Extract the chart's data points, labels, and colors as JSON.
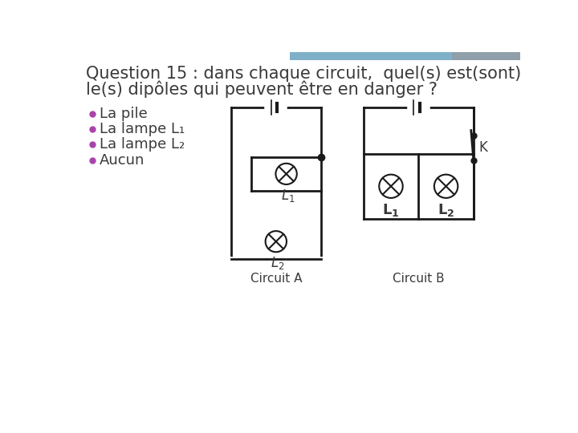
{
  "title_line1": "Question 15 : dans chaque circuit,  quel(s) est(sont)",
  "title_line2": "le(s) dipôles qui peuvent être en danger ?",
  "bullet_color": "#aa44aa",
  "bullet_items": [
    "La pile",
    "La lampe L1",
    "La lampe L2",
    "Aucun"
  ],
  "circuit_a_label": "Circuit A",
  "circuit_b_label": "Circuit B",
  "bg_color": "#ffffff",
  "text_color": "#3a3a3a",
  "line_color": "#1a1a1a",
  "title_fontsize": 15,
  "bullet_fontsize": 13,
  "circuit_label_fontsize": 11,
  "subscript_labels": [
    "L₁",
    "L₂"
  ],
  "header_color_left": "#7fb0c8",
  "header_color_right": "#909faa"
}
